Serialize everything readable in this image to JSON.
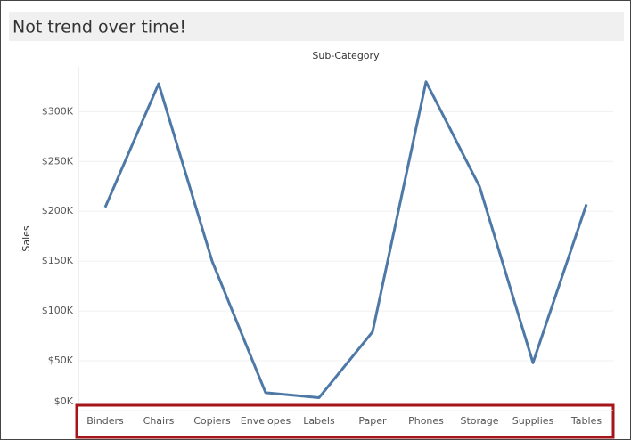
{
  "chart_data": {
    "type": "line",
    "title": "Not trend over time!",
    "x_header": "Sub-Category",
    "y_label": "Sales",
    "categories": [
      "Binders",
      "Chairs",
      "Copiers",
      "Envelopes",
      "Labels",
      "Paper",
      "Phones",
      "Storage",
      "Supplies",
      "Tables"
    ],
    "series": [
      {
        "name": "Sales",
        "color": "#4e79a7",
        "values": [
          204000,
          328000,
          150000,
          18000,
          13000,
          79000,
          330000,
          225000,
          48000,
          207000
        ]
      }
    ],
    "ylim": [
      0,
      345000
    ],
    "yticks": [
      {
        "value": 0,
        "label": "$0K"
      },
      {
        "value": 50000,
        "label": "$50K"
      },
      {
        "value": 100000,
        "label": "$100K"
      },
      {
        "value": 150000,
        "label": "$150K"
      },
      {
        "value": 200000,
        "label": "$200K"
      },
      {
        "value": 250000,
        "label": "$250K"
      },
      {
        "value": 300000,
        "label": "$300K"
      }
    ],
    "grid": true
  }
}
